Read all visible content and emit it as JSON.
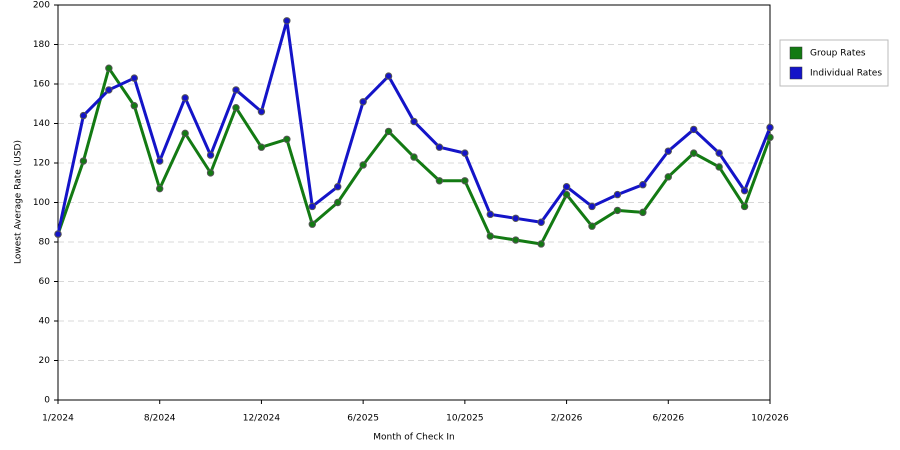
{
  "chart_data": {
    "type": "line",
    "xlabel": "Month of Check In",
    "ylabel": "Lowest Average Rate (USD)",
    "categories": [
      "1/2024",
      null,
      null,
      null,
      "8/2024",
      null,
      null,
      null,
      "12/2024",
      null,
      null,
      null,
      "6/2025",
      null,
      null,
      null,
      "10/2025",
      null,
      null,
      null,
      "2/2026",
      null,
      null,
      null,
      "6/2026",
      null,
      null,
      null,
      "10/2026"
    ],
    "series": [
      {
        "name": "Group Rates",
        "color": "#137a13",
        "values": [
          84,
          121,
          168,
          149,
          107,
          135,
          115,
          148,
          128,
          132,
          89,
          100,
          119,
          136,
          123,
          111,
          111,
          83,
          81,
          79,
          104,
          88,
          96,
          95,
          113,
          125,
          118,
          98,
          133
        ]
      },
      {
        "name": "Individual Rates",
        "color": "#1414c8",
        "values": [
          84,
          144,
          157,
          163,
          121,
          153,
          124,
          157,
          146,
          192,
          98,
          108,
          151,
          164,
          141,
          128,
          125,
          94,
          92,
          90,
          108,
          98,
          104,
          109,
          126,
          137,
          125,
          106,
          138
        ]
      }
    ],
    "ylim": [
      0,
      200
    ],
    "yticks": [
      0,
      20,
      40,
      60,
      80,
      100,
      120,
      140,
      160,
      180,
      200
    ],
    "grid": true,
    "legend": "right"
  }
}
